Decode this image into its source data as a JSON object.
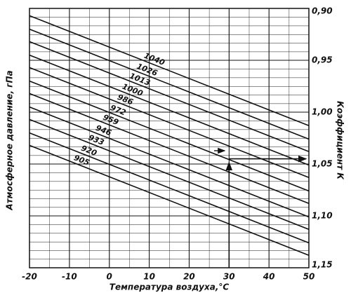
{
  "chart_data": {
    "type": "line",
    "x_label": "Температура воздуха,°С",
    "y_label": "Атмосферное давление, гПа",
    "y2_label": "Коэффициент К",
    "value_axis_side": "right",
    "color": "#111111",
    "grid": true,
    "x": [
      -20,
      50
    ],
    "xlim": [
      -20,
      50
    ],
    "xticks": [
      -20,
      -10,
      0,
      10,
      20,
      30,
      40,
      50
    ],
    "ylim": [
      0.9,
      1.15
    ],
    "yticks": [
      {
        "value": 0.9,
        "label": "0,90"
      },
      {
        "value": 0.95,
        "label": "0,95"
      },
      {
        "value": 1.0,
        "label": "1,00"
      },
      {
        "value": 1.05,
        "label": "1,05"
      },
      {
        "value": 1.1,
        "label": "1,10"
      },
      {
        "value": 1.15,
        "label": "1,15"
      }
    ],
    "series": [
      {
        "name": "1040",
        "values": [
          0.907,
          1.013
        ]
      },
      {
        "name": "1026",
        "values": [
          0.92,
          1.026
        ]
      },
      {
        "name": "1013",
        "values": [
          0.932,
          1.038
        ]
      },
      {
        "name": "1000",
        "values": [
          0.945,
          1.051
        ]
      },
      {
        "name": "986",
        "values": [
          0.957,
          1.063
        ]
      },
      {
        "name": "972",
        "values": [
          0.97,
          1.076
        ]
      },
      {
        "name": "959",
        "values": [
          0.982,
          1.088
        ]
      },
      {
        "name": "946",
        "values": [
          0.995,
          1.101
        ]
      },
      {
        "name": "933",
        "values": [
          1.007,
          1.113
        ]
      },
      {
        "name": "920",
        "values": [
          1.02,
          1.126
        ]
      },
      {
        "name": "905",
        "values": [
          1.032,
          1.138
        ]
      }
    ]
  }
}
